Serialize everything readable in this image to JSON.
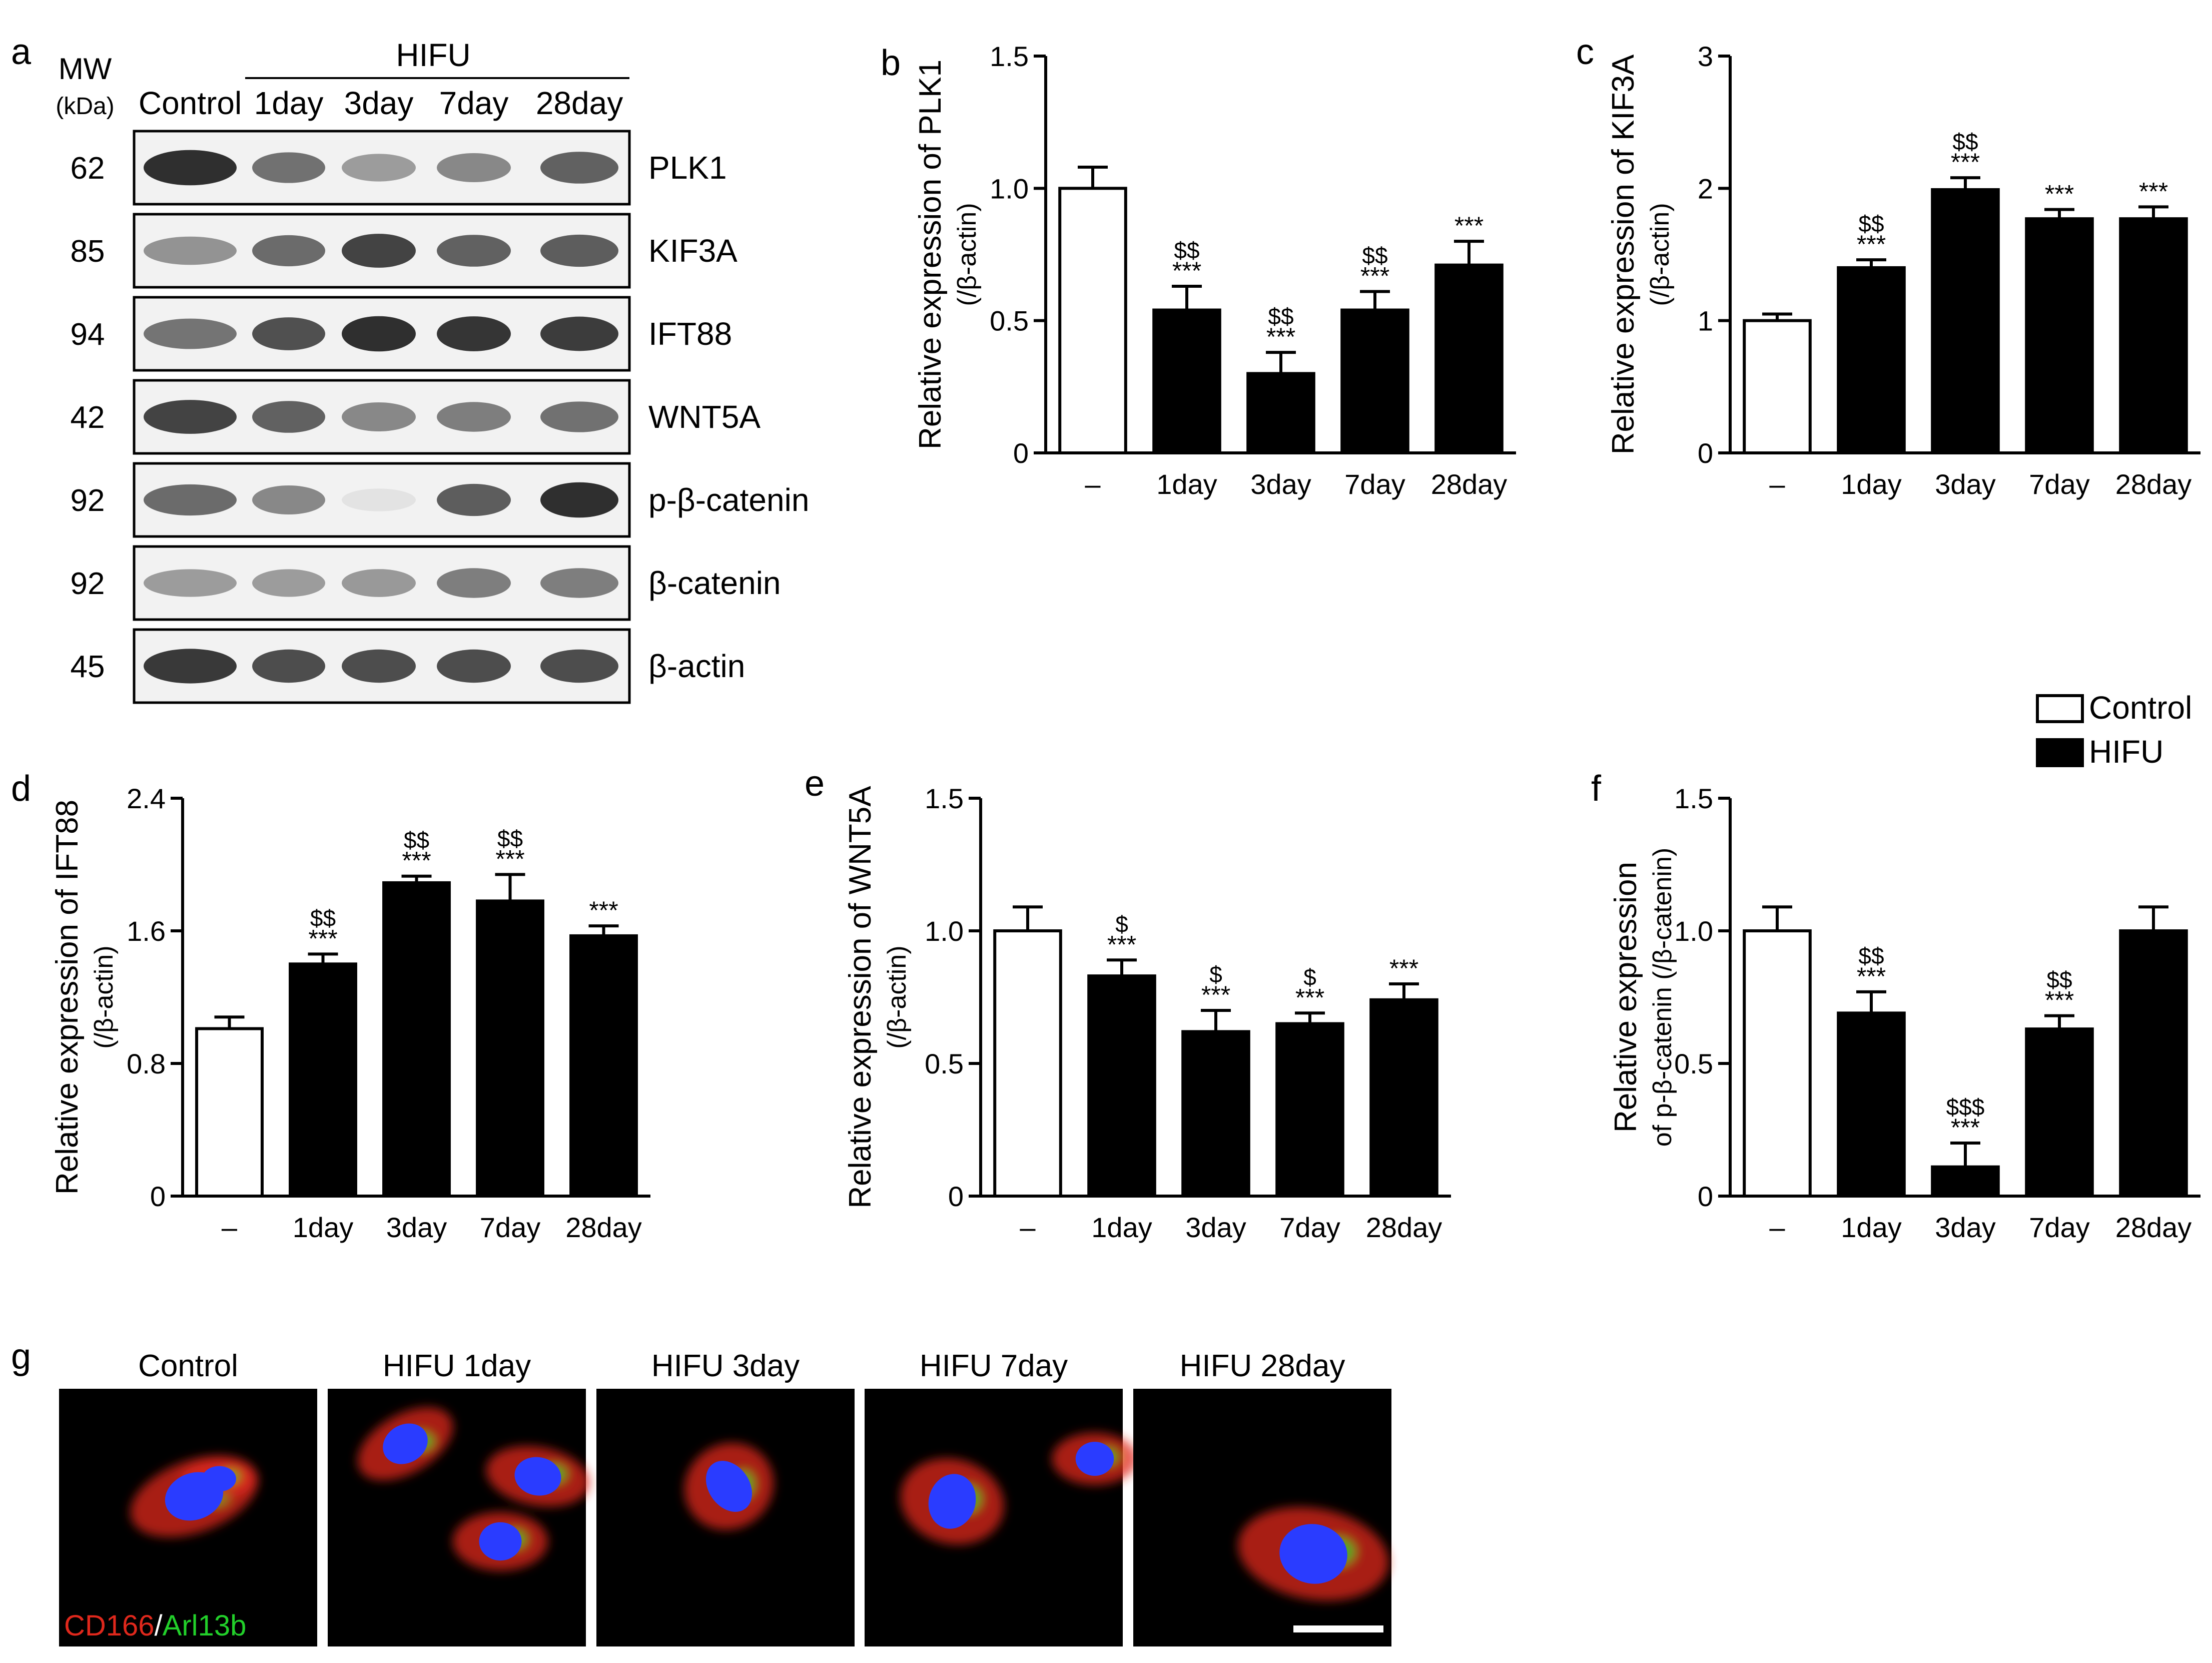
{
  "panel_letters": {
    "a": "a",
    "b": "b",
    "c": "c",
    "d": "d",
    "e": "e",
    "f": "f",
    "g": "g"
  },
  "blot": {
    "mw_header": "MW",
    "mw_unit": "(kDa)",
    "group_label": "HIFU",
    "lanes": [
      "Control",
      "1day",
      "3day",
      "7day",
      "28day"
    ],
    "rows": [
      {
        "mw": "62",
        "protein": "PLK1",
        "intensity": [
          0.95,
          0.62,
          0.4,
          0.5,
          0.7
        ]
      },
      {
        "mw": "85",
        "protein": "KIF3A",
        "intensity": [
          0.45,
          0.65,
          0.85,
          0.7,
          0.72
        ]
      },
      {
        "mw": "94",
        "protein": "IFT88",
        "intensity": [
          0.6,
          0.78,
          0.95,
          0.92,
          0.88
        ]
      },
      {
        "mw": "42",
        "protein": "WNT5A",
        "intensity": [
          0.85,
          0.7,
          0.5,
          0.55,
          0.62
        ]
      },
      {
        "mw": "92",
        "protein": "p-β-catenin",
        "intensity": [
          0.65,
          0.5,
          0.05,
          0.72,
          0.95
        ]
      },
      {
        "mw": "92",
        "protein": "β-catenin",
        "intensity": [
          0.4,
          0.4,
          0.42,
          0.55,
          0.55
        ]
      },
      {
        "mw": "45",
        "protein": "β-actin",
        "intensity": [
          0.9,
          0.8,
          0.8,
          0.8,
          0.8
        ]
      }
    ]
  },
  "legend": {
    "items": [
      {
        "label": "Control",
        "color": "#ffffff"
      },
      {
        "label": "HIFU",
        "color": "#000000"
      }
    ]
  },
  "chart_data": [
    {
      "panel": "b",
      "type": "bar",
      "categories": [
        "–",
        "1day",
        "3day",
        "7day",
        "28day"
      ],
      "values": [
        1.0,
        0.54,
        0.3,
        0.54,
        0.71
      ],
      "errors": [
        0.08,
        0.09,
        0.08,
        0.07,
        0.09
      ],
      "annotations": [
        [
          "",
          ""
        ],
        [
          "$$",
          "***"
        ],
        [
          "$$",
          "***"
        ],
        [
          "$$",
          "***"
        ],
        [
          "",
          "***"
        ]
      ],
      "ylabel": "Relative expression of PLK1",
      "ylabel2": "(/β-actin)",
      "ylim": [
        0,
        1.5
      ],
      "yticks": [
        "0",
        "0.5",
        "1.0",
        "1.5"
      ]
    },
    {
      "panel": "c",
      "type": "bar",
      "categories": [
        "–",
        "1day",
        "3day",
        "7day",
        "28day"
      ],
      "values": [
        1.0,
        1.4,
        1.99,
        1.77,
        1.77
      ],
      "errors": [
        0.05,
        0.06,
        0.09,
        0.07,
        0.09
      ],
      "annotations": [
        [
          "",
          ""
        ],
        [
          "$$",
          "***"
        ],
        [
          "$$",
          "***"
        ],
        [
          "",
          "***"
        ],
        [
          "",
          "***"
        ]
      ],
      "ylabel": "Relative expression of KIF3A",
      "ylabel2": "(/β-actin)",
      "ylim": [
        0,
        3
      ],
      "yticks": [
        "0",
        "1",
        "2",
        "3"
      ]
    },
    {
      "panel": "d",
      "type": "bar",
      "categories": [
        "–",
        "1day",
        "3day",
        "7day",
        "28day"
      ],
      "values": [
        1.01,
        1.4,
        1.89,
        1.78,
        1.57
      ],
      "errors": [
        0.07,
        0.06,
        0.04,
        0.16,
        0.06
      ],
      "annotations": [
        [
          "",
          ""
        ],
        [
          "$$",
          "***"
        ],
        [
          "$$",
          "***"
        ],
        [
          "$$",
          "***"
        ],
        [
          "",
          "***"
        ]
      ],
      "ylabel": "Relative expression of IFT88",
      "ylabel2": "(/β-actin)",
      "ylim": [
        0,
        2.4
      ],
      "yticks": [
        "0",
        "0.8",
        "1.6",
        "2.4"
      ]
    },
    {
      "panel": "e",
      "type": "bar",
      "categories": [
        "–",
        "1day",
        "3day",
        "7day",
        "28day"
      ],
      "values": [
        1.0,
        0.83,
        0.62,
        0.65,
        0.74
      ],
      "errors": [
        0.09,
        0.06,
        0.08,
        0.04,
        0.06
      ],
      "annotations": [
        [
          "",
          ""
        ],
        [
          "$",
          "***"
        ],
        [
          "$",
          "***"
        ],
        [
          "$",
          "***"
        ],
        [
          "",
          "***"
        ]
      ],
      "ylabel": "Relative expression of WNT5A",
      "ylabel2": "(/β-actin)",
      "ylim": [
        0,
        1.5
      ],
      "yticks": [
        "0",
        "0.5",
        "1.0",
        "1.5"
      ]
    },
    {
      "panel": "f",
      "type": "bar",
      "categories": [
        "–",
        "1day",
        "3day",
        "7day",
        "28day"
      ],
      "values": [
        1.0,
        0.69,
        0.11,
        0.63,
        1.0
      ],
      "errors": [
        0.09,
        0.08,
        0.09,
        0.05,
        0.09
      ],
      "annotations": [
        [
          "",
          ""
        ],
        [
          "$$",
          "***"
        ],
        [
          "$$$",
          "***"
        ],
        [
          "$$",
          "***"
        ],
        [
          "",
          ""
        ]
      ],
      "ylabel": "Relative expression",
      "ylabel2": "of p-β-catenin (/β-catenin)",
      "ylim": [
        0,
        1.5
      ],
      "yticks": [
        "0",
        "0.5",
        "1.0",
        "1.5"
      ]
    }
  ],
  "micrographs": {
    "panels": [
      "Control",
      "HIFU 1day",
      "HIFU 3day",
      "HIFU 7day",
      "HIFU 28day"
    ],
    "stain_red": "CD166",
    "stain_sep": "/",
    "stain_green": "Arl13b",
    "colors": {
      "red": "#e0281c",
      "green": "#22d02a",
      "blue": "#2a3cff",
      "background": "#000000"
    }
  }
}
